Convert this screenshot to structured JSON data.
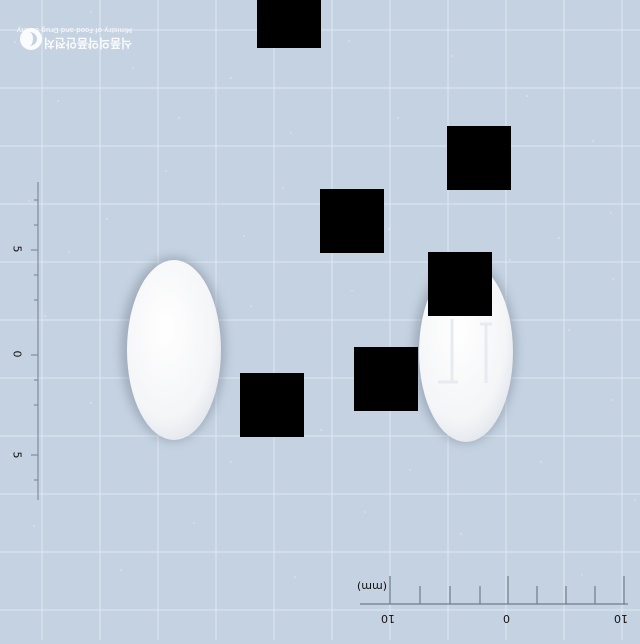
{
  "scene": {
    "background_color": "#c5d2e2",
    "grid_color": "#dfe8f2",
    "tablet_color": "#f7f8fa",
    "shadow_color": "#5f7080"
  },
  "watermark": {
    "brand": "식품의약품안전처",
    "subtitle": "Ministry of Food and Drug Safety"
  },
  "tablet_right": {
    "imprint": "LT"
  },
  "ruler_bottom": {
    "unit": "(mm)",
    "labels": [
      "10",
      "0",
      "10"
    ]
  },
  "ruler_left": {
    "labels": [
      "5",
      "0",
      "5"
    ]
  }
}
